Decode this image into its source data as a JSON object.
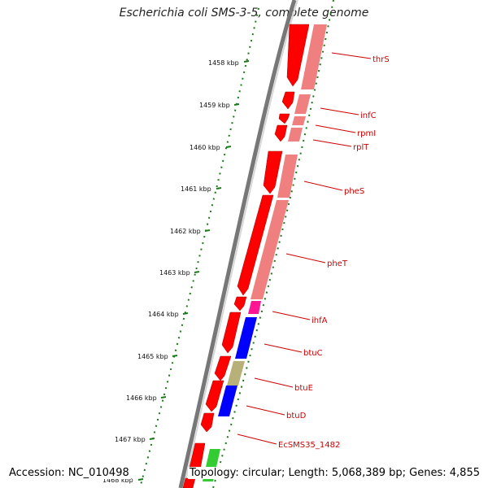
{
  "title": "Escherichia coli SMS-3-5, complete genome",
  "footer": {
    "accession": "Accession: NC_010498",
    "summary": "Topology: circular; Length: 5,068,389 bp; Genes: 4,855"
  },
  "colors": {
    "backbone": "#808080",
    "ruler": "#1a7a1a",
    "forward_cds": "#ff0000",
    "gene_band": "#f08080",
    "label": "#cc0000",
    "ihfA_band": "#ff1493",
    "btuC_band": "#0000ff",
    "btuE_band": "#b8b079",
    "btuD_band": "#0000ff",
    "green_band": "#33cc33"
  },
  "ruler_ticks": [
    {
      "label": "1458 kbp"
    },
    {
      "label": "1459 kbp"
    },
    {
      "label": "1460 kbp"
    },
    {
      "label": "1461 kbp"
    },
    {
      "label": "1462 kbp"
    },
    {
      "label": "1463 kbp"
    },
    {
      "label": "1464 kbp"
    },
    {
      "label": "1465 kbp"
    },
    {
      "label": "1466 kbp"
    },
    {
      "label": "1467 kbp"
    },
    {
      "label": "1468 kbp"
    }
  ],
  "gene_labels": [
    {
      "name": "thrS"
    },
    {
      "name": "infC"
    },
    {
      "name": "rpmI"
    },
    {
      "name": "rplT"
    },
    {
      "name": "pheS"
    },
    {
      "name": "pheT"
    },
    {
      "name": "ihfA"
    },
    {
      "name": "btuC"
    },
    {
      "name": "btuE"
    },
    {
      "name": "btuD"
    },
    {
      "name": "EcSMS35_1482"
    }
  ]
}
